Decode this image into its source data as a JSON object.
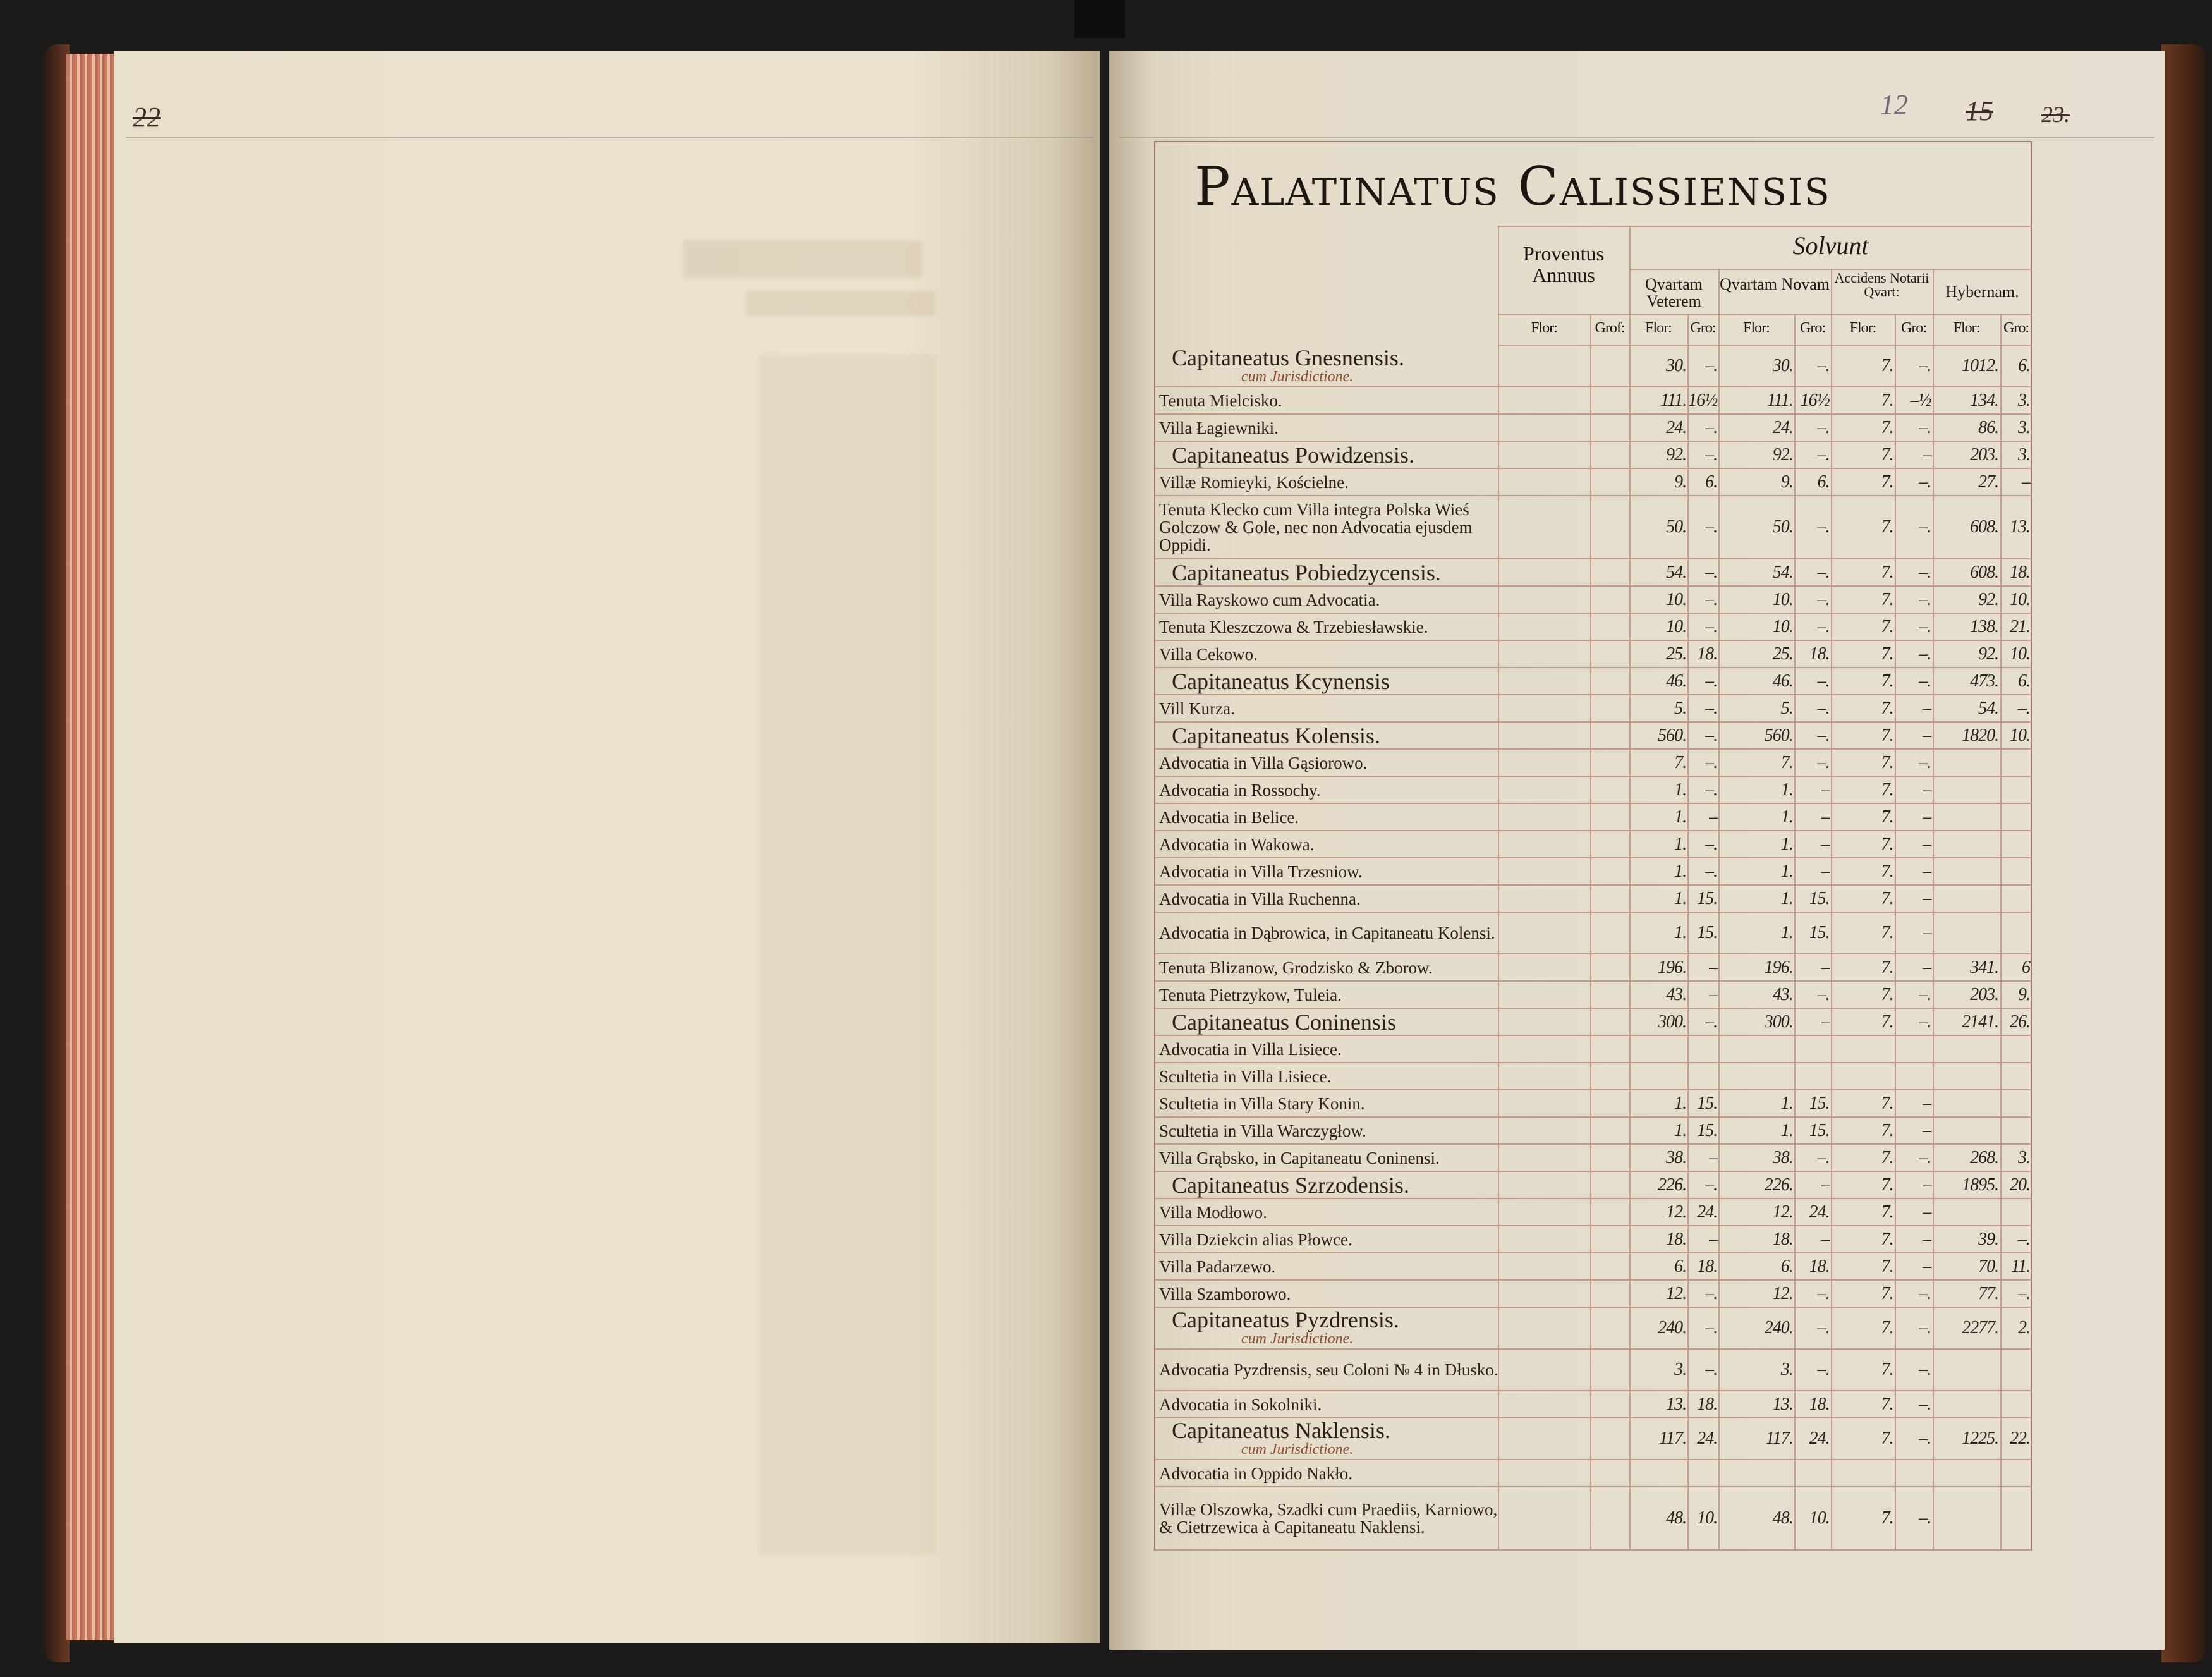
{
  "left_page": {
    "page_number": "22"
  },
  "right_page": {
    "page_number": "12",
    "struck_numbers": [
      "15",
      "23."
    ]
  },
  "title": "Palatinatus Calissiensis",
  "headers": {
    "proventus": "Proventus Annuus",
    "solvunt": "Solvunt",
    "quartam_veterem": "Qvartam Veterem",
    "quartam_novam": "Qvartam Novam",
    "accidens": "Accidens Notarii Qvart:",
    "hybernam": "Hybernam.",
    "units": [
      "Flor:",
      "Grof:",
      "Flor:",
      "Gro:",
      "Flor:",
      "Gro:",
      "Flor:",
      "Gro:",
      "Flor:",
      "Gro:"
    ]
  },
  "rows": [
    {
      "name": "Capitaneatus Gnesnensis.",
      "sub": "cum Jurisdictione.",
      "v": [
        "",
        "",
        "30.",
        "–.",
        "30.",
        "–.",
        "7.",
        "–.",
        "1012.",
        "6."
      ]
    },
    {
      "name": "Tenuta Mielcisko.",
      "v": [
        "",
        "",
        "111.",
        "16½",
        "111.",
        "16½",
        "7.",
        "–½",
        "134.",
        "3."
      ]
    },
    {
      "name": "Villa Łagiewniki.",
      "v": [
        "",
        "",
        "24.",
        "–.",
        "24.",
        "–.",
        "7.",
        "–.",
        "86.",
        "3."
      ]
    },
    {
      "name": "Capitaneatus Powidzensis.",
      "v": [
        "",
        "",
        "92.",
        "–.",
        "92.",
        "–.",
        "7.",
        "–",
        "203.",
        "3."
      ]
    },
    {
      "name": "Villæ Romieyki, Kościelne.",
      "v": [
        "",
        "",
        "9.",
        "6.",
        "9.",
        "6.",
        "7.",
        "–.",
        "27.",
        "–"
      ]
    },
    {
      "name": "Tenuta Klecko cum Villa integra Polska Wieś Golczow & Gole, nec non Advocatia ejusdem Oppidi.",
      "v": [
        "",
        "",
        "50.",
        "–.",
        "50.",
        "–.",
        "7.",
        "–.",
        "608.",
        "13."
      ]
    },
    {
      "name": "Capitaneatus Pobiedzycensis.",
      "v": [
        "",
        "",
        "54.",
        "–.",
        "54.",
        "–.",
        "7.",
        "–.",
        "608.",
        "18."
      ]
    },
    {
      "name": "Villa Rayskowo cum Advocatia.",
      "v": [
        "",
        "",
        "10.",
        "–.",
        "10.",
        "–.",
        "7.",
        "–.",
        "92.",
        "10."
      ]
    },
    {
      "name": "Tenuta Kleszczowa & Trzebiesławskie.",
      "v": [
        "",
        "",
        "10.",
        "–.",
        "10.",
        "–.",
        "7.",
        "–.",
        "138.",
        "21."
      ]
    },
    {
      "name": "Villa Cekowo.",
      "v": [
        "",
        "",
        "25.",
        "18.",
        "25.",
        "18.",
        "7.",
        "–.",
        "92.",
        "10."
      ]
    },
    {
      "name": "Capitaneatus Kcynensis",
      "v": [
        "",
        "",
        "46.",
        "–.",
        "46.",
        "–.",
        "7.",
        "–.",
        "473.",
        "6."
      ]
    },
    {
      "name": "Vill Kurza.",
      "v": [
        "",
        "",
        "5.",
        "–.",
        "5.",
        "–.",
        "7.",
        "–",
        "54.",
        "–."
      ]
    },
    {
      "name": "Capitaneatus Kolensis.",
      "v": [
        "",
        "",
        "560.",
        "–.",
        "560.",
        "–.",
        "7.",
        "–",
        "1820.",
        "10."
      ]
    },
    {
      "name": "Advocatia in Villa Gąsiorowo.",
      "v": [
        "",
        "",
        "7.",
        "–.",
        "7.",
        "–.",
        "7.",
        "–.",
        "",
        ""
      ]
    },
    {
      "name": "Advocatia in Rossochy.",
      "v": [
        "",
        "",
        "1.",
        "–.",
        "1.",
        "–",
        "7.",
        "–",
        "",
        ""
      ]
    },
    {
      "name": "Advocatia in Belice.",
      "v": [
        "",
        "",
        "1.",
        "–",
        "1.",
        "–",
        "7.",
        "–",
        "",
        ""
      ]
    },
    {
      "name": "Advocatia in Wakowa.",
      "v": [
        "",
        "",
        "1.",
        "–.",
        "1.",
        "–",
        "7.",
        "–",
        "",
        ""
      ]
    },
    {
      "name": "Advocatia in Villa Trzesniow.",
      "v": [
        "",
        "",
        "1.",
        "–.",
        "1.",
        "–",
        "7.",
        "–",
        "",
        ""
      ]
    },
    {
      "name": "Advocatia in Villa Ruchenna.",
      "v": [
        "",
        "",
        "1.",
        "15.",
        "1.",
        "15.",
        "7.",
        "–",
        "",
        ""
      ]
    },
    {
      "name": "Advocatia in Dąbrowica, in Capitaneatu Kolensi.",
      "v": [
        "",
        "",
        "1.",
        "15.",
        "1.",
        "15.",
        "7.",
        "–",
        "",
        ""
      ]
    },
    {
      "name": "Tenuta Blizanow, Grodzisko & Zborow.",
      "v": [
        "",
        "",
        "196.",
        "–",
        "196.",
        "–",
        "7.",
        "–",
        "341.",
        "6"
      ]
    },
    {
      "name": "Tenuta Pietrzykow, Tuleia.",
      "v": [
        "",
        "",
        "43.",
        "–",
        "43.",
        "–.",
        "7.",
        "–.",
        "203.",
        "9."
      ]
    },
    {
      "name": "Capitaneatus Coninensis",
      "v": [
        "",
        "",
        "300.",
        "–.",
        "300.",
        "–",
        "7.",
        "–.",
        "2141.",
        "26."
      ]
    },
    {
      "name": "Advocatia in Villa Lisiece.",
      "v": [
        "",
        "",
        "",
        "",
        "",
        "",
        "",
        "",
        "",
        ""
      ]
    },
    {
      "name": "Scultetia in Villa Lisiece.",
      "v": [
        "",
        "",
        "",
        "",
        "",
        "",
        "",
        "",
        "",
        ""
      ]
    },
    {
      "name": "Scultetia in Villa Stary Konin.",
      "v": [
        "",
        "",
        "1.",
        "15.",
        "1.",
        "15.",
        "7.",
        "–",
        "",
        ""
      ]
    },
    {
      "name": "Scultetia in Villa Warczygłow.",
      "v": [
        "",
        "",
        "1.",
        "15.",
        "1.",
        "15.",
        "7.",
        "–",
        "",
        ""
      ]
    },
    {
      "name": "Villa Grąbsko, in Capitaneatu Coninensi.",
      "v": [
        "",
        "",
        "38.",
        "–",
        "38.",
        "–.",
        "7.",
        "–.",
        "268.",
        "3."
      ]
    },
    {
      "name": "Capitaneatus Szrzodensis.",
      "v": [
        "",
        "",
        "226.",
        "–.",
        "226.",
        "–",
        "7.",
        "–",
        "1895.",
        "20."
      ]
    },
    {
      "name": "Villa Modłowo.",
      "v": [
        "",
        "",
        "12.",
        "24.",
        "12.",
        "24.",
        "7.",
        "–",
        "",
        ""
      ]
    },
    {
      "name": "Villa Dziekcin alias Płowce.",
      "v": [
        "",
        "",
        "18.",
        "–",
        "18.",
        "–",
        "7.",
        "–",
        "39.",
        "–."
      ]
    },
    {
      "name": "Villa Padarzewo.",
      "v": [
        "",
        "",
        "6.",
        "18.",
        "6.",
        "18.",
        "7.",
        "–",
        "70.",
        "11."
      ]
    },
    {
      "name": "Villa Szamborowo.",
      "v": [
        "",
        "",
        "12.",
        "–.",
        "12.",
        "–.",
        "7.",
        "–.",
        "77.",
        "–."
      ]
    },
    {
      "name": "Capitaneatus Pyzdrensis.",
      "sub": "cum Jurisdictione.",
      "v": [
        "",
        "",
        "240.",
        "–.",
        "240.",
        "–.",
        "7.",
        "–.",
        "2277.",
        "2."
      ]
    },
    {
      "name": "Advocatia Pyzdrensis, seu Coloni № 4 in Dłusko.",
      "v": [
        "",
        "",
        "3.",
        "–.",
        "3.",
        "–.",
        "7.",
        "–.",
        "",
        ""
      ]
    },
    {
      "name": "Advocatia in Sokolniki.",
      "v": [
        "",
        "",
        "13.",
        "18.",
        "13.",
        "18.",
        "7.",
        "–.",
        "",
        ""
      ]
    },
    {
      "name": "Capitaneatus Naklensis.",
      "sub": "cum Jurisdictione.",
      "v": [
        "",
        "",
        "117.",
        "24.",
        "117.",
        "24.",
        "7.",
        "–.",
        "1225.",
        "22."
      ]
    },
    {
      "name": "Advocatia in Oppido Nakło.",
      "v": [
        "",
        "",
        "",
        "",
        "",
        "",
        "",
        "",
        "",
        ""
      ]
    },
    {
      "name": "Villæ Olszowka, Szadki cum Praediis, Karniowo, & Cietrzewica à Capitaneatu Naklensi.",
      "v": [
        "",
        "",
        "48.",
        "10.",
        "48.",
        "10.",
        "7.",
        "–.",
        "",
        ""
      ]
    }
  ]
}
